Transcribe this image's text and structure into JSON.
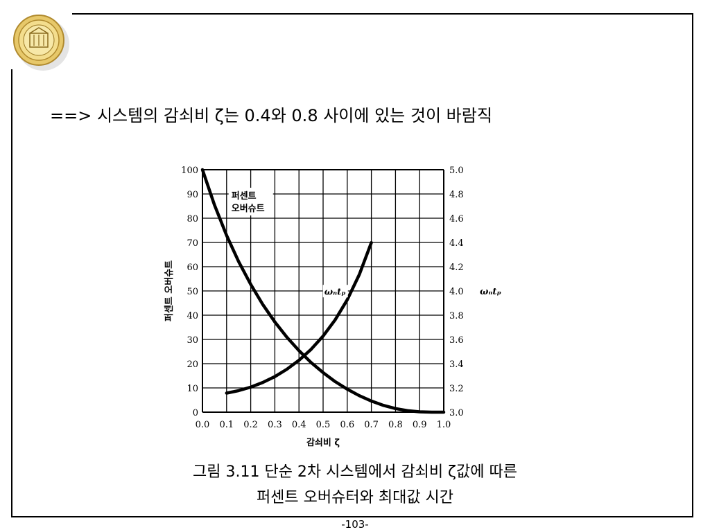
{
  "headline": "==> 시스템의 감쇠비 ζ는 0.4와 0.8 사이에 있는 것이 바람직",
  "caption_line1": "그림 3.11  단순 2차 시스템에서 감쇠비 ζ값에 따른",
  "caption_line2": "퍼센트 오버슈터와 최대값 시간",
  "page_number": "-103-",
  "chart_data": {
    "type": "line",
    "xlabel": "감쇠비  ζ",
    "ylabel": "퍼센트 오버슈트",
    "y2label": "ωₙtₚ",
    "xlim": [
      0.0,
      1.0
    ],
    "ylim": [
      0,
      100
    ],
    "y2lim": [
      3.0,
      5.0
    ],
    "grid": true,
    "x_ticks": [
      "0.0",
      "0.1",
      "0.2",
      "0.3",
      "0.4",
      "0.5",
      "0.6",
      "0.7",
      "0.8",
      "0.9",
      "1.0"
    ],
    "y_ticks": [
      "100",
      "90",
      "80",
      "70",
      "60",
      "50",
      "40",
      "30",
      "20",
      "10",
      "0"
    ],
    "y2_ticks": [
      "5.0",
      "4.8",
      "4.6",
      "4.4",
      "4.2",
      "4.0",
      "3.8",
      "3.6",
      "3.4",
      "3.2",
      "3.0"
    ],
    "series": [
      {
        "name": "퍼센트 오버슈트",
        "name_lines": [
          "퍼센트",
          "오버슈트"
        ],
        "axis": "left",
        "x": [
          0.0,
          0.05,
          0.1,
          0.15,
          0.2,
          0.25,
          0.3,
          0.35,
          0.4,
          0.45,
          0.5,
          0.55,
          0.6,
          0.65,
          0.7,
          0.75,
          0.8,
          0.85,
          0.9,
          0.95,
          1.0
        ],
        "y": [
          100,
          85.4,
          72.9,
          62.1,
          52.7,
          44.4,
          37.2,
          30.9,
          25.4,
          20.5,
          16.3,
          12.6,
          9.5,
          6.8,
          4.6,
          2.8,
          1.5,
          0.6,
          0.15,
          0.0,
          0.0
        ]
      },
      {
        "name": "ωₙtₚ",
        "axis": "right",
        "x": [
          0.1,
          0.15,
          0.2,
          0.25,
          0.3,
          0.35,
          0.4,
          0.45,
          0.5,
          0.55,
          0.6,
          0.65,
          0.7
        ],
        "y": [
          3.157,
          3.178,
          3.206,
          3.245,
          3.293,
          3.354,
          3.428,
          3.518,
          3.628,
          3.762,
          3.927,
          4.135,
          4.399
        ]
      }
    ]
  }
}
